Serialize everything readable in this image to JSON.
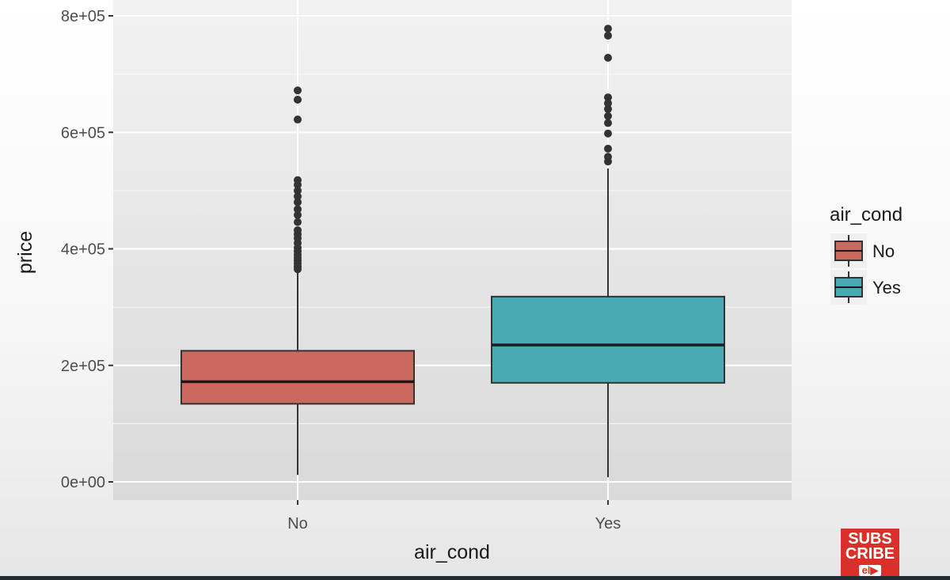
{
  "chart_data": {
    "type": "boxplot",
    "xlabel": "air_cond",
    "ylabel": "price",
    "categories": [
      "No",
      "Yes"
    ],
    "ylim": [
      -15000,
      805000
    ],
    "y_ticks": [
      0,
      200000,
      400000,
      600000,
      800000
    ],
    "y_tick_labels": [
      "0e+00",
      "2e+05",
      "4e+05",
      "6e+05",
      "8e+05"
    ],
    "grid": true,
    "legend": {
      "title": "air_cond",
      "position": "right",
      "entries": [
        {
          "label": "No",
          "color": "#cb6960"
        },
        {
          "label": "Yes",
          "color": "#48aab3"
        }
      ]
    },
    "series": [
      {
        "category": "No",
        "color": "#cb6960",
        "min": 12000,
        "q1": 134000,
        "median": 172000,
        "q3": 225000,
        "max": 360000,
        "outliers": [
          365000,
          370000,
          375000,
          380000,
          385000,
          390000,
          396000,
          402000,
          410000,
          418000,
          425000,
          432000,
          446000,
          458000,
          468000,
          480000,
          490000,
          500000,
          510000,
          518000,
          622000,
          656000,
          672000
        ]
      },
      {
        "category": "Yes",
        "color": "#48aab3",
        "min": 8000,
        "q1": 170000,
        "median": 235000,
        "q3": 318000,
        "max": 538000,
        "outliers": [
          550000,
          558000,
          572000,
          598000,
          616000,
          628000,
          640000,
          650000,
          660000,
          728000,
          766000,
          778000
        ]
      }
    ]
  },
  "overlay": {
    "subscribe_line1": "SUBS",
    "subscribe_line2": "CRIBE",
    "subscribe_play": "el▶"
  }
}
